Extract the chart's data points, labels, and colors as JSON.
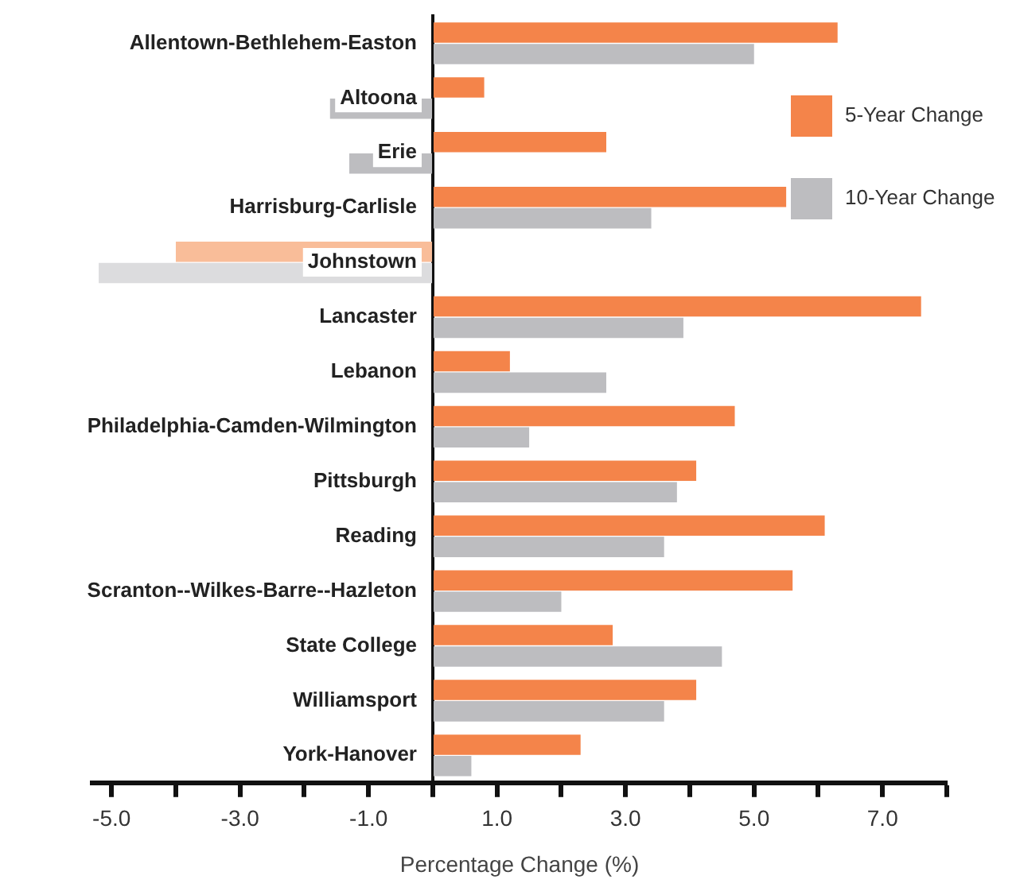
{
  "chart_data": {
    "type": "bar",
    "orientation": "horizontal",
    "xlabel": "Percentage Change (%)",
    "categories": [
      "Allentown-Bethlehem-Easton",
      "Altoona",
      "Erie",
      "Harrisburg-Carlisle",
      "Johnstown",
      "Lancaster",
      "Lebanon",
      "Philadelphia-Camden-Wilmington",
      "Pittsburgh",
      "Reading",
      "Scranton--Wilkes-Barre--Hazleton",
      "State College",
      "Williamsport",
      "York-Hanover"
    ],
    "series": [
      {
        "name": "5-Year Change",
        "color": "#f4844a",
        "colors": [
          "#f4844a",
          "#f4844a",
          "#f4844a",
          "#f4844a",
          "#f9bd99",
          "#f4844a",
          "#f4844a",
          "#f4844a",
          "#f4844a",
          "#f4844a",
          "#f4844a",
          "#f4844a",
          "#f4844a",
          "#f4844a"
        ],
        "values": [
          6.3,
          0.8,
          2.7,
          5.5,
          -4.0,
          7.6,
          1.2,
          4.7,
          4.1,
          6.1,
          5.6,
          2.8,
          4.1,
          2.3
        ]
      },
      {
        "name": "10-Year Change",
        "color": "#bdbdc0",
        "colors": [
          "#bdbdc0",
          "#bdbdc0",
          "#bdbdc0",
          "#bdbdc0",
          "#dcdcde",
          "#bdbdc0",
          "#bdbdc0",
          "#bdbdc0",
          "#bdbdc0",
          "#bdbdc0",
          "#bdbdc0",
          "#bdbdc0",
          "#bdbdc0",
          "#bdbdc0"
        ],
        "values": [
          5.0,
          -1.6,
          -1.3,
          3.4,
          -5.2,
          3.9,
          2.7,
          1.5,
          3.8,
          3.6,
          2.0,
          4.5,
          3.6,
          0.6
        ]
      }
    ],
    "xlim": [
      -5.3,
      8
    ],
    "xticks": [
      {
        "value": -5,
        "label": "-5.0"
      },
      {
        "value": -4,
        "label": null
      },
      {
        "value": -3,
        "label": "-3.0"
      },
      {
        "value": -2,
        "label": null
      },
      {
        "value": -1,
        "label": "-1.0"
      },
      {
        "value": 0,
        "label": null
      },
      {
        "value": 1,
        "label": "1.0"
      },
      {
        "value": 2,
        "label": null
      },
      {
        "value": 3,
        "label": "3.0"
      },
      {
        "value": 4,
        "label": null
      },
      {
        "value": 5,
        "label": "5.0"
      },
      {
        "value": 6,
        "label": null
      },
      {
        "value": 7,
        "label": "7.0"
      },
      {
        "value": 8,
        "label": null
      }
    ],
    "grid": false,
    "legend": "top right"
  }
}
